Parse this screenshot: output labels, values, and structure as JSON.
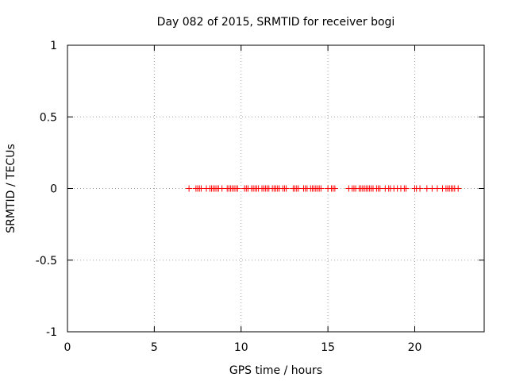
{
  "chart_data": {
    "type": "scatter",
    "title": "Day 082 of 2015, SRMTID for receiver bogi",
    "xlabel": "GPS time / hours",
    "ylabel": "SRMTID / TECUs",
    "xlim": [
      0,
      24
    ],
    "ylim": [
      -1,
      1
    ],
    "xticks": [
      0,
      5,
      10,
      15,
      20
    ],
    "yticks": [
      -1,
      -0.5,
      0,
      0.5,
      1
    ],
    "xtick_labels": [
      "0",
      "5",
      "10",
      "15",
      "20"
    ],
    "ytick_labels": [
      "-1",
      "-0.5",
      "0",
      "0.5",
      "1"
    ],
    "grid": true,
    "marker": "+",
    "series": [
      {
        "name": "SRMTID",
        "color": "#ff0000",
        "points": [
          [
            7.0,
            0
          ],
          [
            7.4,
            0
          ],
          [
            7.5,
            0
          ],
          [
            7.6,
            0
          ],
          [
            7.7,
            0
          ],
          [
            8.0,
            0
          ],
          [
            8.2,
            0
          ],
          [
            8.3,
            0
          ],
          [
            8.4,
            0
          ],
          [
            8.5,
            0
          ],
          [
            8.6,
            0
          ],
          [
            8.7,
            0
          ],
          [
            8.9,
            0
          ],
          [
            9.2,
            0
          ],
          [
            9.3,
            0
          ],
          [
            9.4,
            0
          ],
          [
            9.5,
            0
          ],
          [
            9.6,
            0
          ],
          [
            9.7,
            0
          ],
          [
            9.8,
            0
          ],
          [
            10.2,
            0
          ],
          [
            10.3,
            0
          ],
          [
            10.4,
            0
          ],
          [
            10.6,
            0
          ],
          [
            10.7,
            0
          ],
          [
            10.8,
            0
          ],
          [
            10.9,
            0
          ],
          [
            11.0,
            0
          ],
          [
            11.2,
            0
          ],
          [
            11.3,
            0
          ],
          [
            11.4,
            0
          ],
          [
            11.5,
            0
          ],
          [
            11.6,
            0
          ],
          [
            11.8,
            0
          ],
          [
            11.9,
            0
          ],
          [
            12.0,
            0
          ],
          [
            12.1,
            0
          ],
          [
            12.2,
            0
          ],
          [
            12.4,
            0
          ],
          [
            12.5,
            0
          ],
          [
            12.6,
            0
          ],
          [
            13.0,
            0
          ],
          [
            13.1,
            0
          ],
          [
            13.2,
            0
          ],
          [
            13.3,
            0
          ],
          [
            13.6,
            0
          ],
          [
            13.7,
            0
          ],
          [
            13.8,
            0
          ],
          [
            14.0,
            0
          ],
          [
            14.1,
            0
          ],
          [
            14.2,
            0
          ],
          [
            14.3,
            0
          ],
          [
            14.4,
            0
          ],
          [
            14.5,
            0
          ],
          [
            14.6,
            0
          ],
          [
            15.0,
            0
          ],
          [
            15.2,
            0
          ],
          [
            15.3,
            0
          ],
          [
            15.4,
            0
          ],
          [
            16.2,
            0
          ],
          [
            16.4,
            0
          ],
          [
            16.5,
            0
          ],
          [
            16.6,
            0
          ],
          [
            16.8,
            0
          ],
          [
            16.9,
            0
          ],
          [
            17.0,
            0
          ],
          [
            17.1,
            0
          ],
          [
            17.2,
            0
          ],
          [
            17.3,
            0
          ],
          [
            17.4,
            0
          ],
          [
            17.5,
            0
          ],
          [
            17.6,
            0
          ],
          [
            17.8,
            0
          ],
          [
            17.9,
            0
          ],
          [
            18.0,
            0
          ],
          [
            18.3,
            0
          ],
          [
            18.5,
            0
          ],
          [
            18.6,
            0
          ],
          [
            18.8,
            0
          ],
          [
            19.0,
            0
          ],
          [
            19.2,
            0
          ],
          [
            19.4,
            0
          ],
          [
            19.5,
            0
          ],
          [
            20.0,
            0
          ],
          [
            20.1,
            0
          ],
          [
            20.3,
            0
          ],
          [
            20.7,
            0
          ],
          [
            21.0,
            0
          ],
          [
            21.3,
            0
          ],
          [
            21.6,
            0
          ],
          [
            21.8,
            0
          ],
          [
            21.9,
            0
          ],
          [
            22.0,
            0
          ],
          [
            22.1,
            0
          ],
          [
            22.2,
            0
          ],
          [
            22.3,
            0
          ],
          [
            22.5,
            0
          ]
        ]
      }
    ]
  }
}
